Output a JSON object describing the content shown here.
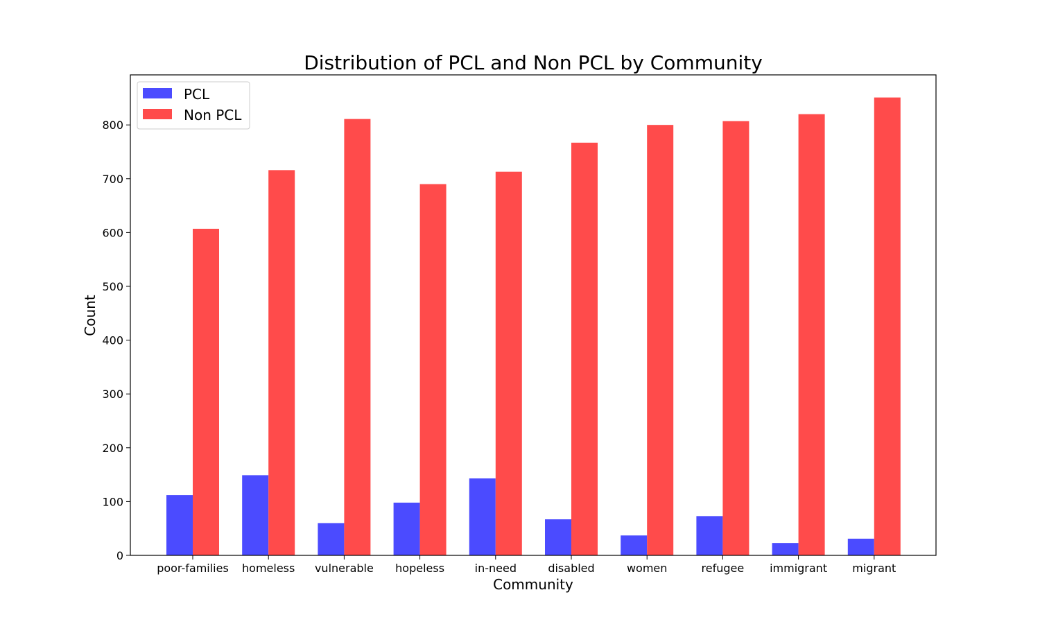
{
  "chart_data": {
    "type": "bar",
    "title": "Distribution of PCL and Non PCL by Community",
    "xlabel": "Community",
    "ylabel": "Count",
    "categories": [
      "poor-families",
      "homeless",
      "vulnerable",
      "hopeless",
      "in-need",
      "disabled",
      "women",
      "refugee",
      "immigrant",
      "migrant"
    ],
    "series": [
      {
        "name": "PCL",
        "color": "#4b4bff",
        "values": [
          112,
          149,
          60,
          98,
          143,
          67,
          37,
          73,
          23,
          31
        ]
      },
      {
        "name": "Non PCL",
        "color": "#ff4b4b",
        "values": [
          607,
          716,
          811,
          690,
          713,
          767,
          800,
          807,
          820,
          851
        ]
      }
    ],
    "ylim": [
      0,
      893
    ],
    "yticks": [
      0,
      100,
      200,
      300,
      400,
      500,
      600,
      700,
      800
    ],
    "grid": false,
    "legend_position": "top-left"
  }
}
